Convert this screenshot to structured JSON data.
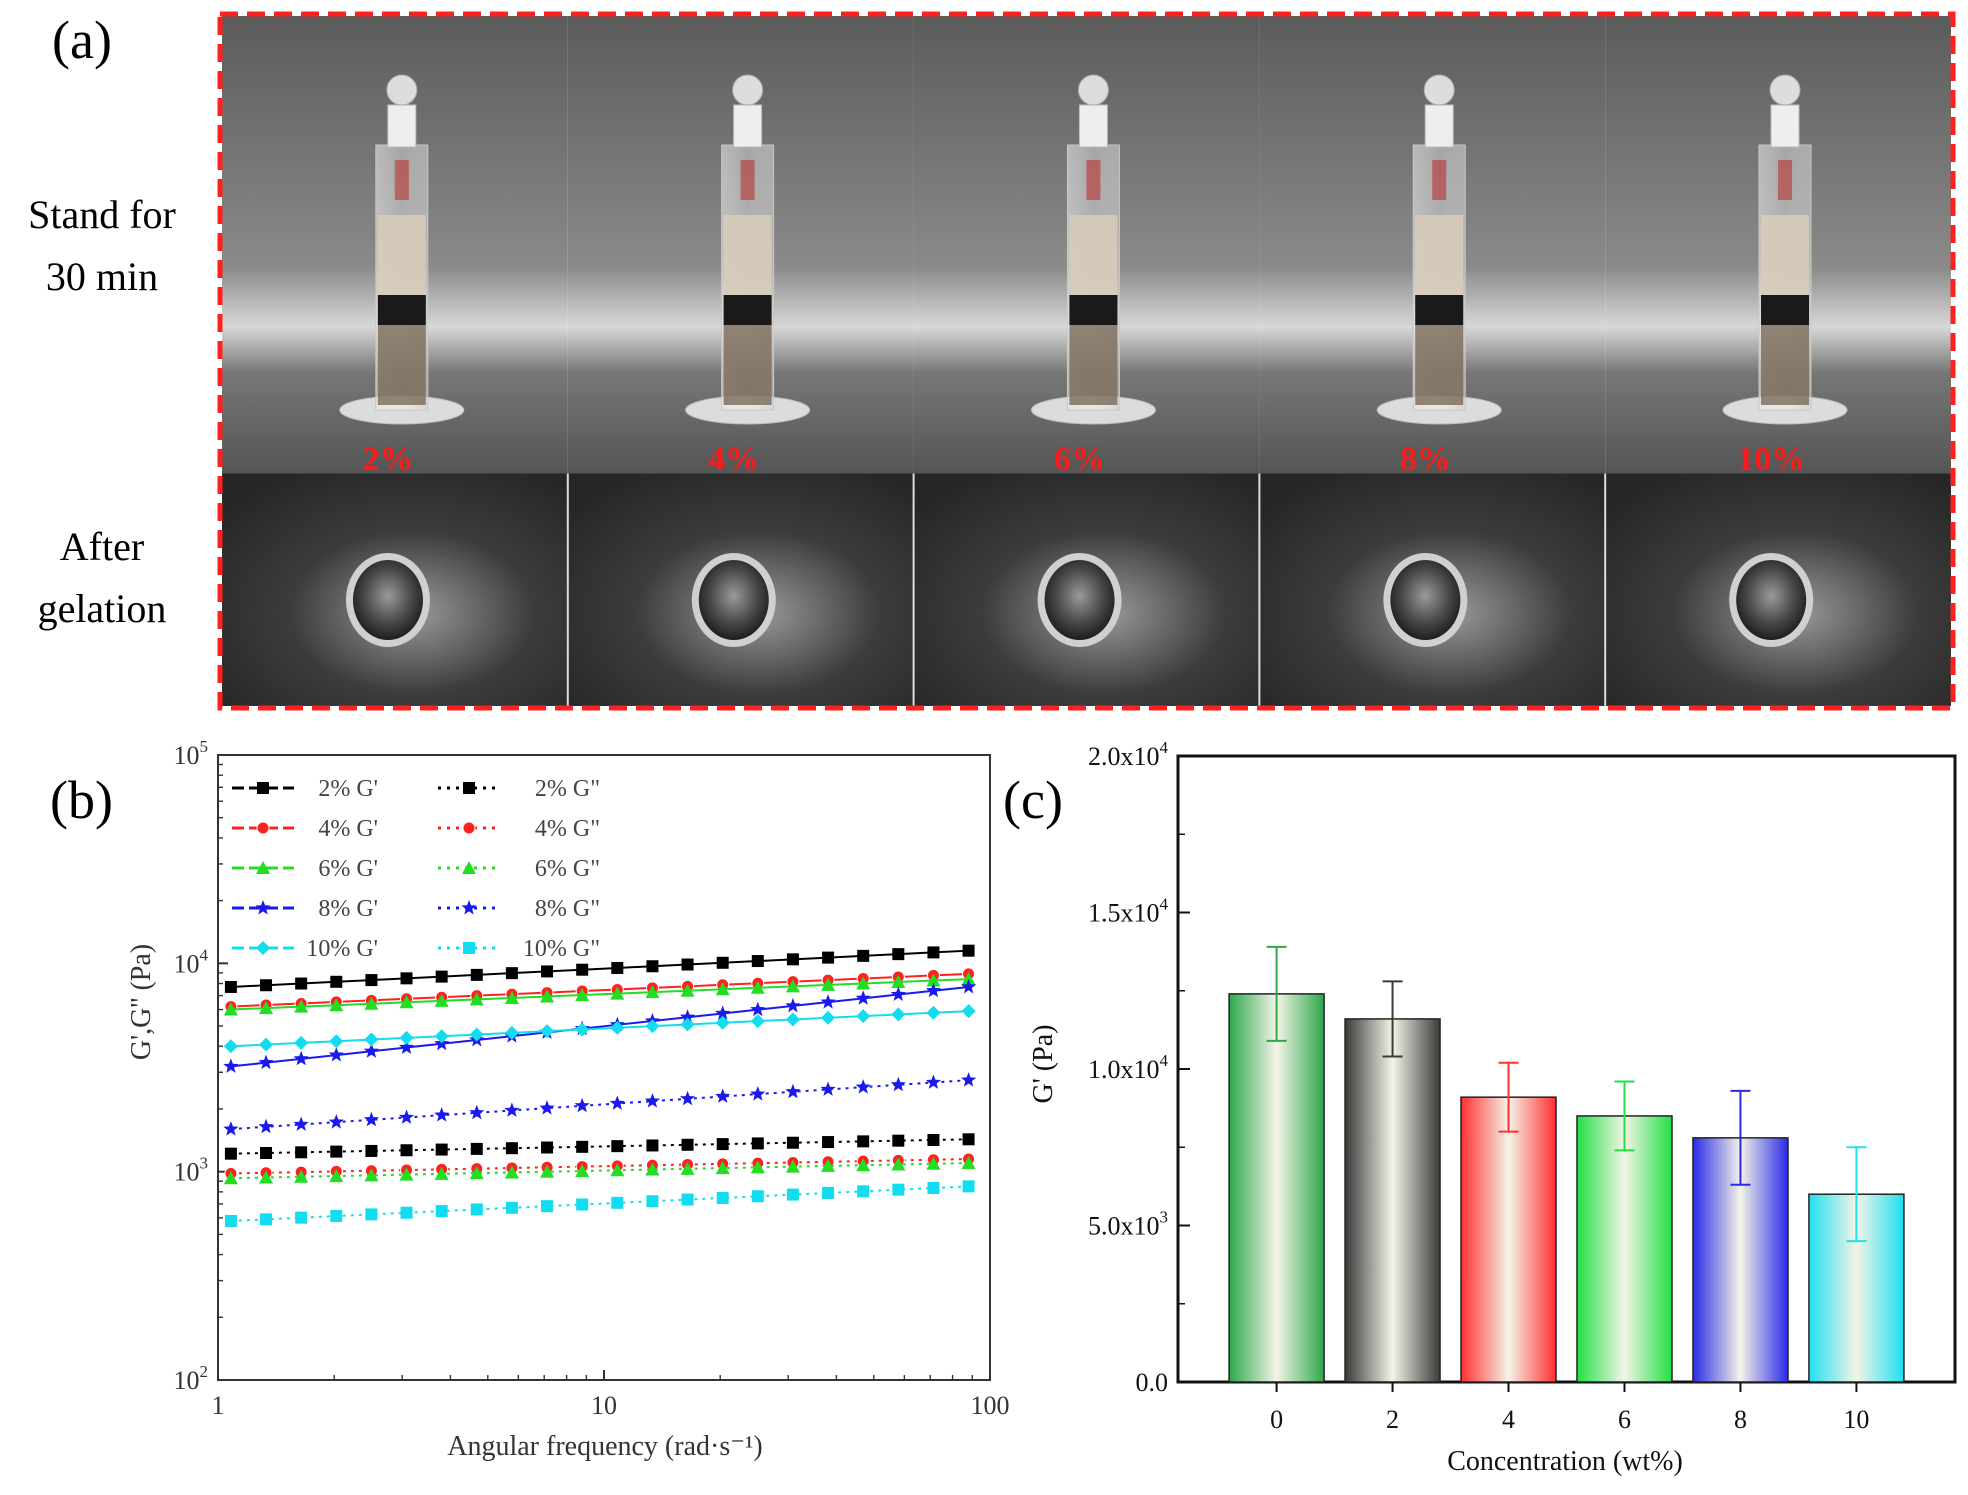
{
  "panel_a": {
    "label": "(a)",
    "row1_label": [
      "Stand for",
      "30 min"
    ],
    "row2_label": [
      "After",
      "gelation"
    ],
    "concentrations": [
      "2%",
      "4%",
      "6%",
      "8%",
      "10%"
    ],
    "colors": {
      "frame": "#ff2020",
      "label": "#ff1a1a"
    }
  },
  "chart_data": [
    {
      "panel_label": "(b)",
      "type": "scatter",
      "xlabel": "Angular frequency (rad·s⁻¹)",
      "ylabel": "G',G'' (Pa)",
      "xscale": "log",
      "yscale": "log",
      "xlim": [
        1,
        100
      ],
      "ylim": [
        100,
        100000
      ],
      "x_ticks": [
        "1",
        "10",
        "100"
      ],
      "y_ticks": [
        {
          "base": "10",
          "exp": "2"
        },
        {
          "base": "10",
          "exp": "3"
        },
        {
          "base": "10",
          "exp": "4"
        },
        {
          "base": "10",
          "exp": "5"
        }
      ],
      "legend_position": "top-left",
      "series": [
        {
          "name": "2% G'",
          "color": "#000000",
          "marker": "square",
          "start": 7700,
          "end": 11500
        },
        {
          "name": "2% G\"",
          "color": "#000000",
          "marker": "square",
          "start": 1220,
          "end": 1430
        },
        {
          "name": "4% G'",
          "color": "#ff2020",
          "marker": "circle",
          "start": 6200,
          "end": 8900
        },
        {
          "name": "4% G\"",
          "color": "#ff2020",
          "marker": "circle",
          "start": 980,
          "end": 1150
        },
        {
          "name": "6% G'",
          "color": "#22dd22",
          "marker": "triangle",
          "start": 6000,
          "end": 8400
        },
        {
          "name": "6% G\"",
          "color": "#22dd22",
          "marker": "triangle",
          "start": 930,
          "end": 1100
        },
        {
          "name": "8% G'",
          "color": "#1a1aee",
          "marker": "star",
          "start": 3200,
          "end": 7700
        },
        {
          "name": "8% G\"",
          "color": "#1a1aee",
          "marker": "star",
          "start": 1600,
          "end": 2750
        },
        {
          "name": "10% G'",
          "color": "#11ddee",
          "marker": "diamond",
          "start": 4000,
          "end": 5900
        },
        {
          "name": "10% G\"",
          "color": "#11ddee",
          "marker": "square",
          "start": 580,
          "end": 850
        }
      ],
      "x_range_data": [
        1.08,
        88
      ]
    },
    {
      "panel_label": "(c)",
      "type": "bar",
      "xlabel": "Concentration (wt%)",
      "ylabel": "G' (Pa)",
      "ylim": [
        0,
        20000
      ],
      "y_ticks": [
        {
          "value": 0,
          "text": "0.0",
          "exp": ""
        },
        {
          "value": 5000,
          "text": "5.0x10",
          "exp": "3"
        },
        {
          "value": 10000,
          "text": "1.0x10",
          "exp": "4"
        },
        {
          "value": 15000,
          "text": "1.5x10",
          "exp": "4"
        },
        {
          "value": 20000,
          "text": "2.0x10",
          "exp": "4"
        }
      ],
      "categories": [
        "0",
        "2",
        "4",
        "6",
        "8",
        "10"
      ],
      "values": [
        12400,
        11600,
        9100,
        8500,
        7800,
        6000
      ],
      "errors": [
        1500,
        1200,
        1100,
        1100,
        1500,
        1500
      ],
      "colors": [
        "#2ea84a",
        "#3a3a3a",
        "#ff3030",
        "#22e044",
        "#2a2ae8",
        "#20e0f0"
      ]
    }
  ]
}
